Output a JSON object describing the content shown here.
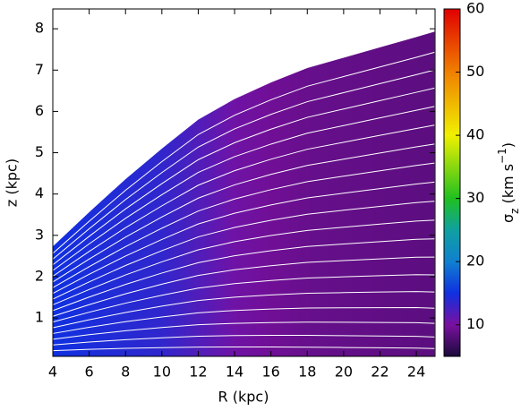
{
  "chart_data": {
    "type": "heatmap",
    "xlabel": "R (kpc)",
    "ylabel": "z (kpc)",
    "xlim": [
      4,
      25.03
    ],
    "ylim": [
      0.07,
      8.48
    ],
    "xticks": [
      4,
      6,
      8,
      10,
      12,
      14,
      16,
      18,
      20,
      22,
      24
    ],
    "yticks": [
      1,
      2,
      3,
      4,
      5,
      6,
      7,
      8
    ],
    "x": [
      4,
      6,
      8,
      10,
      12,
      14,
      16,
      18,
      20,
      22,
      24,
      25
    ],
    "upper_boundary": [
      2.73,
      3.56,
      4.36,
      5.1,
      5.8,
      6.3,
      6.7,
      7.05,
      7.3,
      7.55,
      7.8,
      7.93
    ],
    "sigma": [
      15,
      14.5,
      14,
      13.5,
      12,
      10.5,
      9.5,
      9,
      8.8,
      8.7,
      8.5,
      8.4
    ],
    "contour_color": "#ffffff",
    "colorbar": {
      "label_parts": [
        "σ",
        "z",
        " (km s",
        "−1",
        ")"
      ],
      "lim": [
        5,
        60
      ],
      "ticks": [
        10,
        20,
        30,
        40,
        50,
        60
      ],
      "stops": [
        5,
        10,
        15,
        20,
        25,
        30,
        40,
        50,
        60
      ],
      "colors": [
        "#1a0a3a",
        "#7a10a0",
        "#1030e0",
        "#1080d0",
        "#10a0a0",
        "#20c020",
        "#f0f000",
        "#f08000",
        "#e00000"
      ]
    }
  }
}
